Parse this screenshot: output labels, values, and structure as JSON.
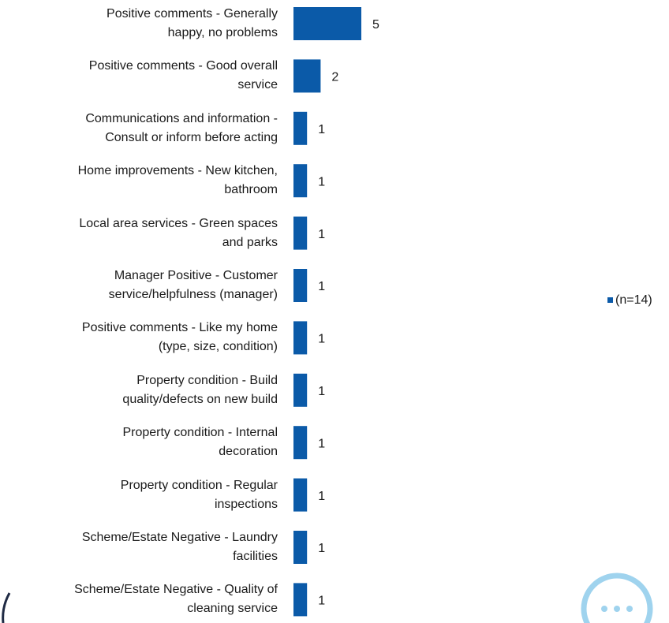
{
  "chart_data": {
    "type": "bar",
    "orientation": "horizontal",
    "categories": [
      "Positive comments - Generally\nhappy, no problems",
      "Positive comments - Good overall\nservice",
      "Communications and information -\nConsult or inform before acting",
      "Home improvements - New kitchen,\nbathroom",
      "Local area services - Green spaces\nand parks",
      "Manager Positive - Customer\nservice/helpfulness (manager)",
      "Positive comments - Like my home\n(type, size, condition)",
      "Property condition - Build\nquality/defects on new build",
      "Property condition - Internal\ndecoration",
      "Property condition - Regular\ninspections",
      "Scheme/Estate Negative - Laundry\nfacilities",
      "Scheme/Estate Negative - Quality of\ncleaning service"
    ],
    "series": [
      {
        "name": "(n=14)",
        "color": "#0b5aa8",
        "values": [
          5,
          2,
          1,
          1,
          1,
          1,
          1,
          1,
          1,
          1,
          1,
          1
        ]
      }
    ],
    "legend": "right"
  }
}
